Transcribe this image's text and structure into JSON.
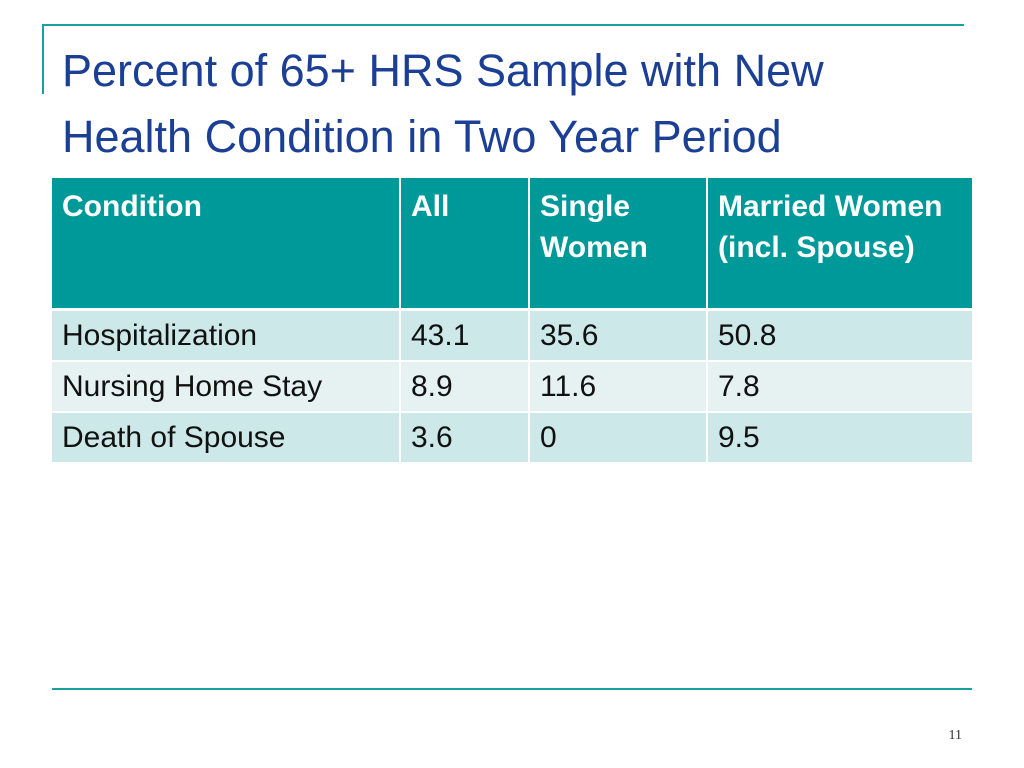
{
  "slide": {
    "title_line1": "Percent of 65+ HRS Sample with New",
    "title_line2": "Health Condition in Two Year Period",
    "page_number": "11"
  },
  "table": {
    "headers": [
      "Condition",
      "All",
      "Single Women",
      "Married Women (incl. Spouse)"
    ],
    "rows": [
      [
        "Hospitalization",
        "43.1",
        "35.6",
        "50.8"
      ],
      [
        "Nursing Home Stay",
        "8.9",
        "11.6",
        "7.8"
      ],
      [
        "Death of Spouse",
        "3.6",
        "0",
        "9.5"
      ]
    ]
  },
  "colors": {
    "accent": "#009999",
    "title": "#1c3f96",
    "row_dark": "#cde8e8",
    "row_light": "#e6f2f2"
  }
}
